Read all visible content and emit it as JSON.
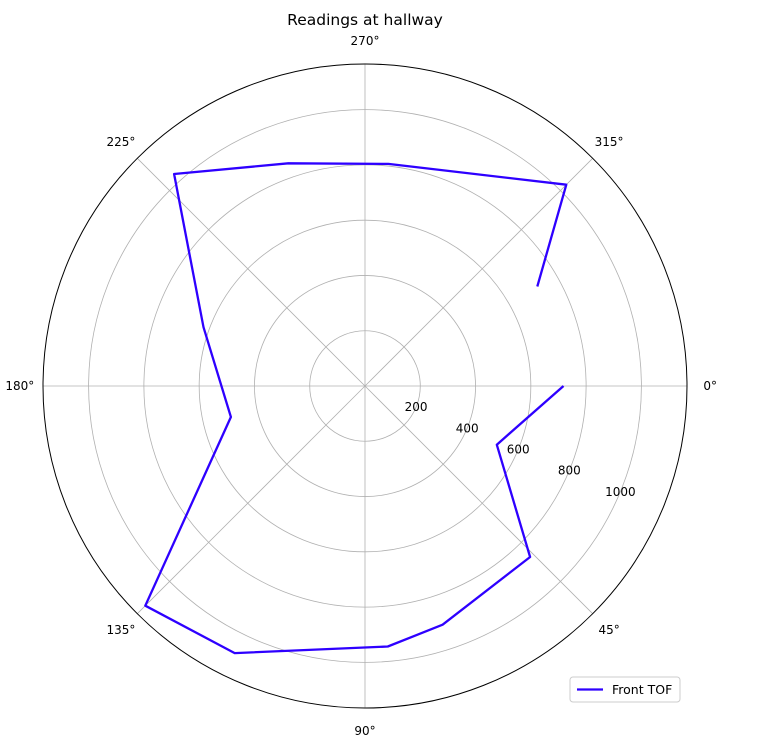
{
  "chart_data": {
    "type": "line",
    "projection": "polar",
    "title": "Readings at hallway",
    "theta_direction": "clockwise",
    "theta_zero_location": "E",
    "theta_ticks": [
      {
        "deg": 0,
        "label": "0°"
      },
      {
        "deg": 45,
        "label": "45°"
      },
      {
        "deg": 90,
        "label": "90°"
      },
      {
        "deg": 135,
        "label": "135°"
      },
      {
        "deg": 180,
        "label": "180°"
      },
      {
        "deg": 225,
        "label": "225°"
      },
      {
        "deg": 270,
        "label": "270°"
      },
      {
        "deg": 315,
        "label": "315°"
      }
    ],
    "r_ticks": [
      {
        "value": 200,
        "label": "200"
      },
      {
        "value": 400,
        "label": "400"
      },
      {
        "value": 600,
        "label": "600"
      },
      {
        "value": 800,
        "label": "800"
      },
      {
        "value": 1000,
        "label": "1000"
      }
    ],
    "rlim": [
      0,
      1165
    ],
    "grid": true,
    "legend_position": "lower-right",
    "series": [
      {
        "name": "Front TOF",
        "color": "#2e00ff",
        "points": [
          {
            "theta": 0,
            "r": 718
          },
          {
            "theta": 24,
            "r": 522
          },
          {
            "theta": 46,
            "r": 860
          },
          {
            "theta": 72,
            "r": 908
          },
          {
            "theta": 85,
            "r": 946
          },
          {
            "theta": 116,
            "r": 1075
          },
          {
            "theta": 135,
            "r": 1124
          },
          {
            "theta": 167,
            "r": 498
          },
          {
            "theta": 200,
            "r": 622
          },
          {
            "theta": 228,
            "r": 1032
          },
          {
            "theta": 251,
            "r": 852
          },
          {
            "theta": 276,
            "r": 808
          },
          {
            "theta": 315,
            "r": 1030
          },
          {
            "theta": 330,
            "r": 720
          }
        ]
      }
    ]
  }
}
